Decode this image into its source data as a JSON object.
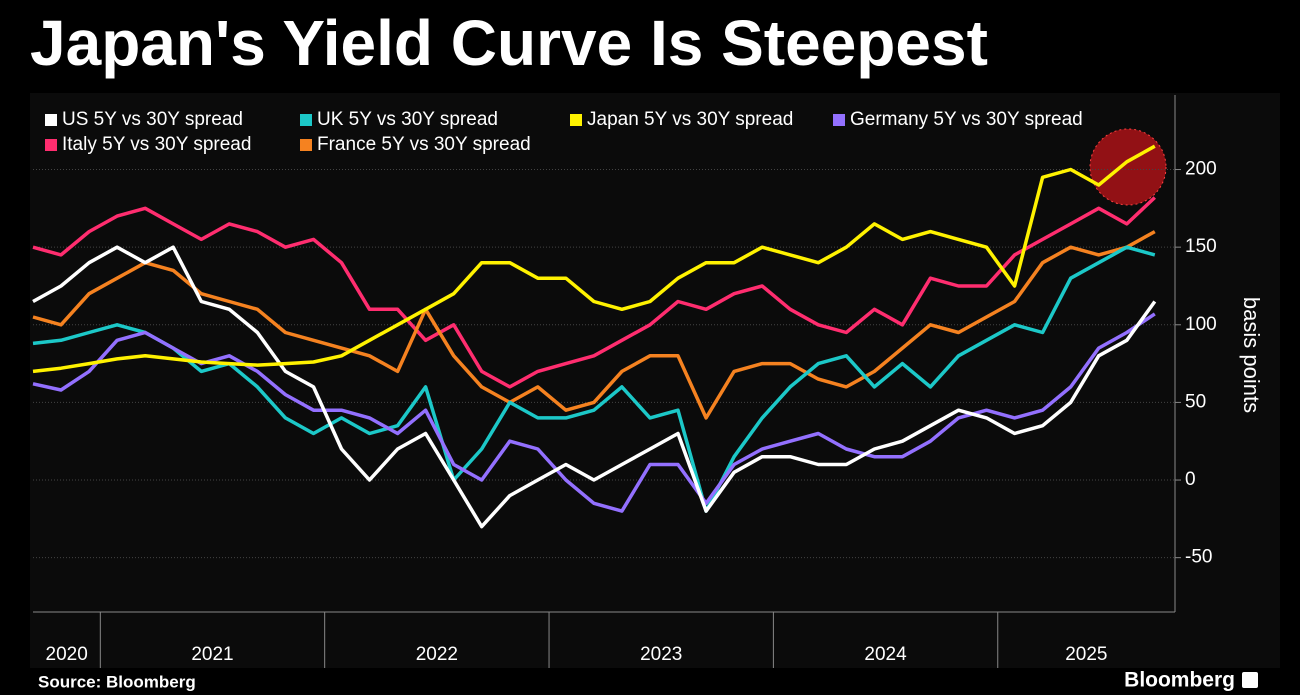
{
  "chart_data": {
    "type": "line",
    "title": "Japan's Yield Curve Is Steepest",
    "y_label": "basis points",
    "source": "Source: Bloomberg",
    "brand": "Bloomberg",
    "x": [
      2020.7,
      2020.825,
      2020.95,
      2021.075,
      2021.2,
      2021.325,
      2021.45,
      2021.575,
      2021.7,
      2021.825,
      2021.95,
      2022.075,
      2022.2,
      2022.325,
      2022.45,
      2022.575,
      2022.7,
      2022.825,
      2022.95,
      2023.075,
      2023.2,
      2023.325,
      2023.45,
      2023.575,
      2023.7,
      2023.825,
      2023.95,
      2024.075,
      2024.2,
      2024.325,
      2024.45,
      2024.575,
      2024.7,
      2024.825,
      2024.95,
      2025.075,
      2025.2,
      2025.325,
      2025.45,
      2025.575,
      2025.7
    ],
    "xlim": [
      2020.7,
      2025.79
    ],
    "xticks": [
      2021,
      2022,
      2023,
      2024,
      2025
    ],
    "year_labels": [
      2020,
      2021,
      2022,
      2023,
      2024,
      2025
    ],
    "ylim": [
      -85,
      248
    ],
    "yticks": [
      -50,
      0,
      50,
      100,
      150,
      200
    ],
    "series": [
      {
        "name": "US 5Y vs 30Y spread",
        "color": "#ffffff",
        "values": [
          115,
          125,
          140,
          150,
          140,
          150,
          115,
          110,
          95,
          70,
          60,
          20,
          0,
          20,
          30,
          0,
          -30,
          -10,
          0,
          10,
          0,
          10,
          20,
          30,
          -20,
          5,
          15,
          15,
          10,
          10,
          20,
          25,
          35,
          45,
          40,
          30,
          35,
          50,
          80,
          90,
          115
        ]
      },
      {
        "name": "UK 5Y vs 30Y spread",
        "color": "#1cc8c8",
        "values": [
          88,
          90,
          95,
          100,
          95,
          85,
          70,
          75,
          60,
          40,
          30,
          40,
          30,
          35,
          60,
          0,
          20,
          50,
          40,
          40,
          45,
          60,
          40,
          45,
          -20,
          15,
          40,
          60,
          75,
          80,
          60,
          75,
          60,
          80,
          90,
          100,
          95,
          130,
          140,
          150,
          145
        ]
      },
      {
        "name": "Japan 5Y vs 30Y spread",
        "color": "#fff200",
        "values": [
          70,
          72,
          75,
          78,
          80,
          78,
          76,
          75,
          74,
          75,
          76,
          80,
          90,
          100,
          110,
          120,
          140,
          140,
          130,
          130,
          115,
          110,
          115,
          130,
          140,
          140,
          150,
          145,
          140,
          150,
          165,
          155,
          160,
          155,
          150,
          125,
          195,
          200,
          190,
          205,
          215
        ]
      },
      {
        "name": "Germany 5Y vs 30Y spread",
        "color": "#9370ff",
        "values": [
          62,
          58,
          70,
          90,
          95,
          85,
          75,
          80,
          70,
          55,
          45,
          45,
          40,
          30,
          45,
          10,
          0,
          25,
          20,
          0,
          -15,
          -20,
          10,
          10,
          -15,
          10,
          20,
          25,
          30,
          20,
          15,
          15,
          25,
          40,
          45,
          40,
          45,
          60,
          85,
          95,
          107
        ]
      },
      {
        "name": "Italy 5Y vs 30Y spread",
        "color": "#ff2d6f",
        "values": [
          150,
          145,
          160,
          170,
          175,
          165,
          155,
          165,
          160,
          150,
          155,
          140,
          110,
          110,
          90,
          100,
          70,
          60,
          70,
          75,
          80,
          90,
          100,
          115,
          110,
          120,
          125,
          110,
          100,
          95,
          110,
          100,
          130,
          125,
          125,
          145,
          155,
          165,
          175,
          165,
          182
        ]
      },
      {
        "name": "France 5Y vs 30Y spread",
        "color": "#f58220",
        "values": [
          105,
          100,
          120,
          130,
          140,
          135,
          120,
          115,
          110,
          95,
          90,
          85,
          80,
          70,
          110,
          80,
          60,
          50,
          60,
          45,
          50,
          70,
          80,
          80,
          40,
          70,
          75,
          75,
          65,
          60,
          70,
          85,
          100,
          95,
          105,
          115,
          140,
          150,
          145,
          150,
          160
        ]
      }
    ]
  }
}
